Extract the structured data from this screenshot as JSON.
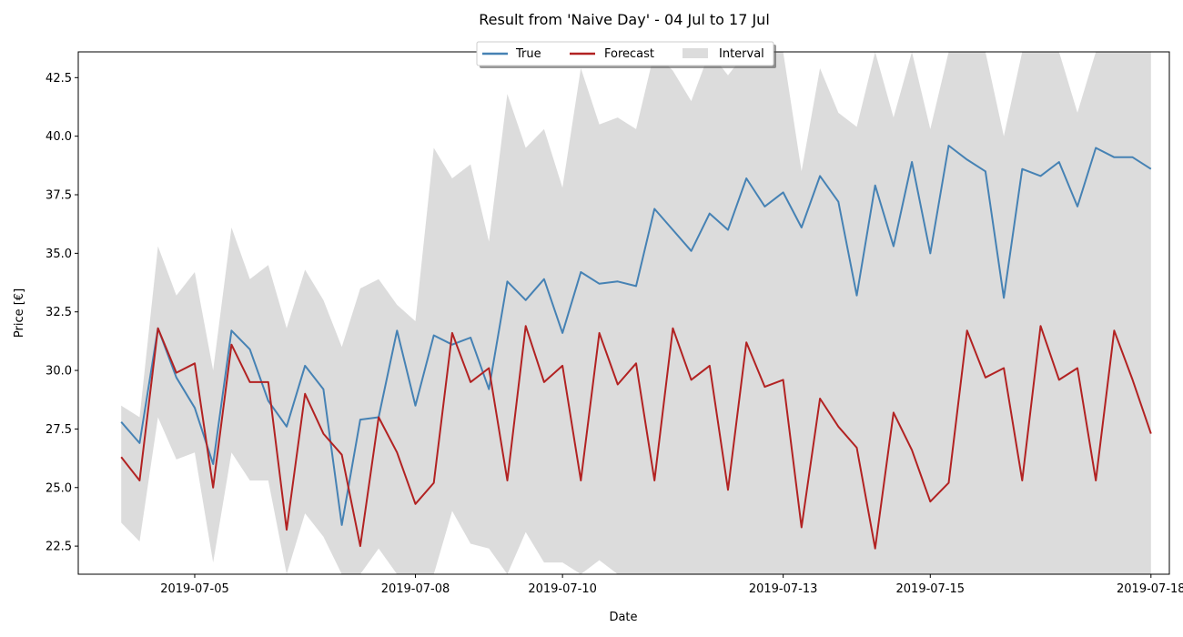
{
  "chart_data": {
    "type": "line",
    "title": "Result from 'Naive Day' - 04 Jul to 17 Jul",
    "xlabel": "Date",
    "ylabel": "Price [€]",
    "ylim": [
      21.3,
      43.6
    ],
    "xlim": [
      "2019-07-03T10:00",
      "2019-07-18T06:00"
    ],
    "x_ticks": [
      "2019-07-05",
      "2019-07-08",
      "2019-07-10",
      "2019-07-13",
      "2019-07-15",
      "2019-07-18"
    ],
    "y_ticks": [
      22.5,
      25.0,
      27.5,
      30.0,
      32.5,
      35.0,
      37.5,
      40.0,
      42.5
    ],
    "grid": false,
    "legend": {
      "placement": "top-center",
      "entries": [
        "True",
        "Forecast",
        "Interval"
      ]
    },
    "colors": {
      "True": "#4682b4",
      "Forecast": "#b22222",
      "Interval": "#dcdcdc"
    },
    "x": [
      "2019-07-04T00:00",
      "2019-07-04T06:00",
      "2019-07-04T12:00",
      "2019-07-04T18:00",
      "2019-07-05T00:00",
      "2019-07-05T06:00",
      "2019-07-05T12:00",
      "2019-07-05T18:00",
      "2019-07-06T00:00",
      "2019-07-06T06:00",
      "2019-07-06T12:00",
      "2019-07-06T18:00",
      "2019-07-07T00:00",
      "2019-07-07T06:00",
      "2019-07-07T12:00",
      "2019-07-07T18:00",
      "2019-07-08T00:00",
      "2019-07-08T06:00",
      "2019-07-08T12:00",
      "2019-07-08T18:00",
      "2019-07-09T00:00",
      "2019-07-09T06:00",
      "2019-07-09T12:00",
      "2019-07-09T18:00",
      "2019-07-10T00:00",
      "2019-07-10T06:00",
      "2019-07-10T12:00",
      "2019-07-10T18:00",
      "2019-07-11T00:00",
      "2019-07-11T06:00",
      "2019-07-11T12:00",
      "2019-07-11T18:00",
      "2019-07-12T00:00",
      "2019-07-12T06:00",
      "2019-07-12T12:00",
      "2019-07-12T18:00",
      "2019-07-13T00:00",
      "2019-07-13T06:00",
      "2019-07-13T12:00",
      "2019-07-13T18:00",
      "2019-07-14T00:00",
      "2019-07-14T06:00",
      "2019-07-14T12:00",
      "2019-07-14T18:00",
      "2019-07-15T00:00",
      "2019-07-15T06:00",
      "2019-07-15T12:00",
      "2019-07-15T18:00",
      "2019-07-16T00:00",
      "2019-07-16T06:00",
      "2019-07-16T12:00",
      "2019-07-16T18:00",
      "2019-07-17T00:00",
      "2019-07-17T06:00",
      "2019-07-17T12:00",
      "2019-07-17T18:00",
      "2019-07-18T00:00"
    ],
    "series": [
      {
        "name": "True",
        "values": [
          27.8,
          26.9,
          31.8,
          29.7,
          28.4,
          26.0,
          31.7,
          30.9,
          28.7,
          27.6,
          30.2,
          29.2,
          23.4,
          27.9,
          28.0,
          31.7,
          28.5,
          31.5,
          31.1,
          31.4,
          29.2,
          33.8,
          33.0,
          33.9,
          31.6,
          34.2,
          33.7,
          33.8,
          33.6,
          36.9,
          36.0,
          35.1,
          36.7,
          36.0,
          38.2,
          37.0,
          37.6,
          36.1,
          38.3,
          37.2,
          33.2,
          37.9,
          35.3,
          38.9,
          35.0,
          39.6,
          39.0,
          38.5,
          33.1,
          38.6,
          38.3,
          38.9,
          37.0,
          39.5,
          39.1,
          39.1,
          38.6
        ]
      },
      {
        "name": "Forecast",
        "values": [
          26.3,
          25.3,
          31.8,
          29.9,
          30.3,
          25.0,
          31.1,
          29.5,
          29.5,
          23.2,
          29.0,
          27.3,
          26.4,
          22.5,
          28.0,
          26.5,
          24.3,
          25.2,
          31.6,
          29.5,
          30.1,
          25.3,
          31.9,
          29.5,
          30.2,
          25.3,
          31.6,
          29.4,
          30.3,
          25.3,
          31.8,
          29.6,
          30.2,
          24.9,
          31.2,
          29.3,
          29.6,
          23.3,
          28.8,
          27.6,
          26.7,
          22.4,
          28.2,
          26.6,
          24.4,
          25.2,
          31.7,
          29.7,
          30.1,
          25.3,
          31.9,
          29.6,
          30.1,
          25.3,
          31.7,
          29.6,
          27.3
        ]
      }
    ],
    "interval": {
      "name": "Interval",
      "upper": [
        28.5,
        28.0,
        35.3,
        33.2,
        34.2,
        30.0,
        36.1,
        33.9,
        34.5,
        31.8,
        34.3,
        33.0,
        31.0,
        33.5,
        33.9,
        32.8,
        32.1,
        39.5,
        38.2,
        38.8,
        35.5,
        41.8,
        39.5,
        40.3,
        37.8,
        42.9,
        40.5,
        40.8,
        40.3,
        43.6,
        42.8,
        41.5,
        43.6,
        42.6,
        43.6,
        43.6,
        43.6,
        38.5,
        42.9,
        41.0,
        40.4,
        43.6,
        40.8,
        43.6,
        40.3,
        43.6,
        43.6,
        43.6,
        40.0,
        43.6,
        43.6,
        43.6,
        41.0,
        43.6,
        43.6,
        43.6,
        43.6
      ],
      "lower": [
        23.5,
        22.7,
        28.0,
        26.2,
        26.5,
        21.8,
        26.5,
        25.3,
        25.3,
        21.3,
        23.9,
        22.9,
        21.3,
        21.3,
        22.4,
        21.3,
        21.3,
        21.3,
        24.0,
        22.6,
        22.4,
        21.3,
        23.1,
        21.8,
        21.8,
        21.3,
        21.9,
        21.3,
        21.3,
        21.3,
        21.3,
        21.3,
        21.3,
        21.3,
        21.3,
        21.3,
        21.3,
        21.3,
        21.3,
        21.3,
        21.3,
        21.3,
        21.3,
        21.3,
        21.3,
        21.3,
        21.3,
        21.3,
        21.3,
        21.3,
        21.3,
        21.3,
        21.3,
        21.3,
        21.3,
        21.3,
        21.3
      ]
    }
  }
}
